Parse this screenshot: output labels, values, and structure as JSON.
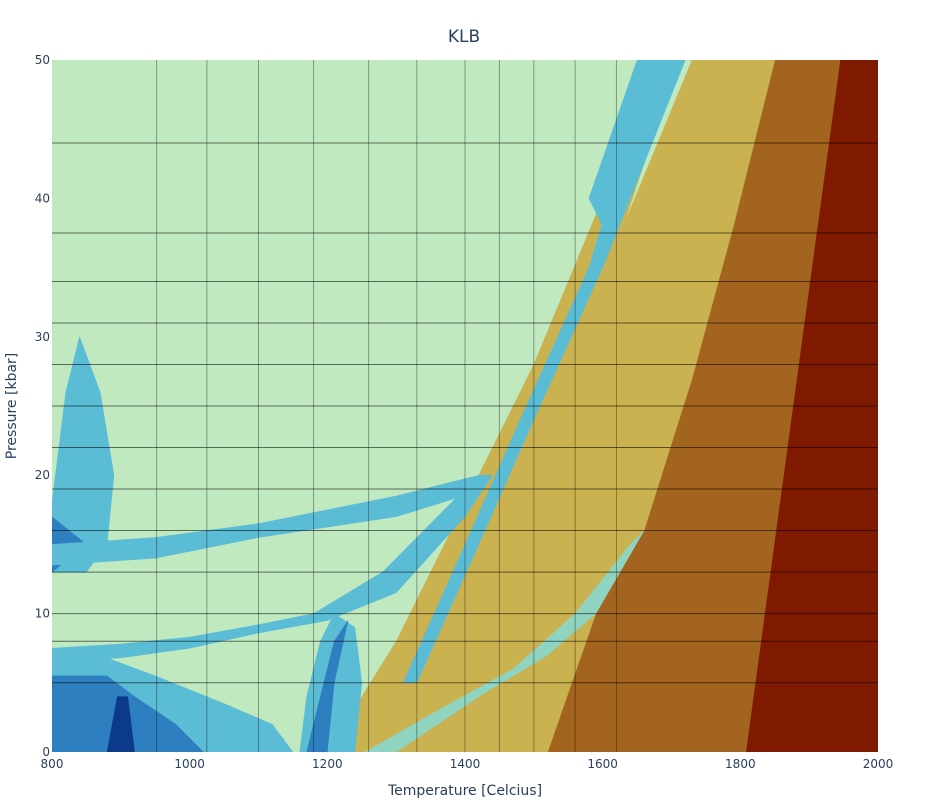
{
  "chart_data": {
    "type": "heatmap",
    "title": "KLB",
    "xlabel": "Temperature [Celcius]",
    "ylabel": "Pressure [kbar]",
    "xlim": [
      800,
      2000
    ],
    "ylim": [
      0,
      50
    ],
    "x_ticks": [
      800,
      1000,
      1200,
      1400,
      1600,
      1800,
      2000
    ],
    "y_ticks": [
      0,
      10,
      20,
      30,
      40,
      50
    ],
    "grid": "adaptive mesh lines overlaid",
    "legend": "none",
    "colors": {
      "stable_field": "#c0e9c0",
      "thin_band": "#8fd3c1",
      "light_blue": "#5bbcd6",
      "mid_blue": "#2d7fc0",
      "dark_blue": "#0b3a8a",
      "ochre": "#cbb251",
      "brown": "#a3641f",
      "dark_red": "#7f1a00"
    },
    "color_order": [
      "#c0e9c0",
      "#8fd3c1",
      "#5bbcd6",
      "#2d7fc0",
      "#0b3a8a",
      "#cbb251",
      "#a3641f",
      "#7f1a00"
    ],
    "fields": [
      {
        "color": "#7f1a00",
        "points": [
          [
            2000,
            0
          ],
          [
            1808,
            0
          ],
          [
            1945,
            50
          ],
          [
            2000,
            50
          ]
        ]
      },
      {
        "color": "#a3641f",
        "points": [
          [
            1808,
            0
          ],
          [
            1520,
            0
          ],
          [
            1590,
            10
          ],
          [
            1660,
            16
          ],
          [
            1730,
            27
          ],
          [
            1790,
            38
          ],
          [
            1850,
            50
          ],
          [
            1945,
            50
          ]
        ]
      },
      {
        "color": "#cbb251",
        "points": [
          [
            1520,
            0
          ],
          [
            1330,
            0
          ],
          [
            1400,
            10
          ],
          [
            1460,
            17
          ],
          [
            1530,
            26
          ],
          [
            1630,
            38
          ],
          [
            1730,
            50
          ],
          [
            1850,
            50
          ],
          [
            1790,
            38
          ],
          [
            1730,
            27
          ],
          [
            1660,
            16
          ],
          [
            1590,
            10
          ]
        ]
      },
      {
        "color": "#cbb251",
        "points": [
          [
            1200,
            0
          ],
          [
            1300,
            8
          ],
          [
            1400,
            18
          ],
          [
            1500,
            28
          ],
          [
            1600,
            40
          ],
          [
            1670,
            50
          ],
          [
            1710,
            50
          ],
          [
            1630,
            38
          ],
          [
            1530,
            26
          ],
          [
            1460,
            17
          ],
          [
            1400,
            10
          ],
          [
            1330,
            0
          ]
        ]
      },
      {
        "color": "#8fd3c1",
        "points": [
          [
            1255,
            0
          ],
          [
            1360,
            3
          ],
          [
            1470,
            6
          ],
          [
            1560,
            10
          ],
          [
            1640,
            15
          ],
          [
            1660,
            16
          ],
          [
            1590,
            10
          ],
          [
            1520,
            7
          ],
          [
            1420,
            4
          ],
          [
            1300,
            0
          ]
        ]
      },
      {
        "color": "#5bbcd6",
        "points": [
          [
            1310,
            5
          ],
          [
            1400,
            15
          ],
          [
            1480,
            24
          ],
          [
            1580,
            35
          ],
          [
            1670,
            50
          ],
          [
            1720,
            50
          ],
          [
            1600,
            35
          ],
          [
            1500,
            24
          ],
          [
            1420,
            15
          ],
          [
            1330,
            5
          ]
        ]
      },
      {
        "color": "#5bbcd6",
        "points": [
          [
            1650,
            50
          ],
          [
            1680,
            50
          ],
          [
            1600,
            38
          ],
          [
            1580,
            40
          ]
        ]
      },
      {
        "color": "#5bbcd6",
        "points": [
          [
            800,
            18
          ],
          [
            820,
            26
          ],
          [
            840,
            30
          ],
          [
            870,
            26
          ],
          [
            890,
            20
          ],
          [
            880,
            15
          ],
          [
            850,
            13
          ],
          [
            800,
            13
          ]
        ]
      },
      {
        "color": "#2d7fc0",
        "points": [
          [
            800,
            13
          ],
          [
            800,
            17
          ],
          [
            850,
            15
          ]
        ]
      },
      {
        "color": "#5bbcd6",
        "points": [
          [
            800,
            15
          ],
          [
            950,
            15.5
          ],
          [
            1100,
            16.5
          ],
          [
            1300,
            18.5
          ],
          [
            1420,
            20
          ],
          [
            1430,
            19
          ],
          [
            1300,
            17
          ],
          [
            1100,
            15.5
          ],
          [
            950,
            14
          ],
          [
            800,
            13.5
          ]
        ]
      },
      {
        "color": "#5bbcd6",
        "points": [
          [
            800,
            7.5
          ],
          [
            900,
            7.8
          ],
          [
            1000,
            8.3
          ],
          [
            1100,
            9.2
          ],
          [
            1180,
            10
          ],
          [
            1200,
            9.5
          ],
          [
            1100,
            8.6
          ],
          [
            1000,
            7.5
          ],
          [
            900,
            6.8
          ],
          [
            800,
            6.5
          ]
        ]
      },
      {
        "color": "#5bbcd6",
        "points": [
          [
            1180,
            10
          ],
          [
            1280,
            13
          ],
          [
            1380,
            18
          ],
          [
            1420,
            20
          ],
          [
            1440,
            20
          ],
          [
            1400,
            17
          ],
          [
            1300,
            11.5
          ],
          [
            1200,
            9.5
          ]
        ]
      },
      {
        "color": "#5bbcd6",
        "points": [
          [
            1160,
            0
          ],
          [
            1170,
            4
          ],
          [
            1190,
            8
          ],
          [
            1210,
            10
          ],
          [
            1240,
            9
          ],
          [
            1250,
            5
          ],
          [
            1240,
            0
          ]
        ]
      },
      {
        "color": "#5bbcd6",
        "points": [
          [
            800,
            6.5
          ],
          [
            880,
            6.8
          ],
          [
            950,
            5.5
          ],
          [
            1050,
            3.5
          ],
          [
            1120,
            2
          ],
          [
            1150,
            0
          ],
          [
            1020,
            0
          ],
          [
            980,
            2
          ],
          [
            920,
            4
          ],
          [
            880,
            5.5
          ],
          [
            800,
            5.5
          ]
        ]
      },
      {
        "color": "#2d7fc0",
        "points": [
          [
            800,
            0
          ],
          [
            800,
            5.5
          ],
          [
            880,
            5.5
          ],
          [
            920,
            4
          ],
          [
            980,
            2
          ],
          [
            1020,
            0
          ]
        ]
      },
      {
        "color": "#2d7fc0",
        "points": [
          [
            1170,
            0
          ],
          [
            1190,
            4
          ],
          [
            1210,
            8
          ],
          [
            1230,
            9.5
          ],
          [
            1210,
            5
          ],
          [
            1200,
            0
          ]
        ]
      },
      {
        "color": "#0b3a8a",
        "points": [
          [
            880,
            0
          ],
          [
            895,
            4
          ],
          [
            910,
            4
          ],
          [
            920,
            0
          ]
        ]
      }
    ],
    "mesh_x_lines": [
      952,
      1025,
      1100,
      1180,
      1260,
      1330,
      1400,
      1450,
      1500,
      1560,
      1620
    ],
    "mesh_y_lines": [
      5,
      8,
      10,
      13,
      16,
      19,
      22,
      25,
      28,
      31,
      34,
      37.5,
      44
    ]
  }
}
